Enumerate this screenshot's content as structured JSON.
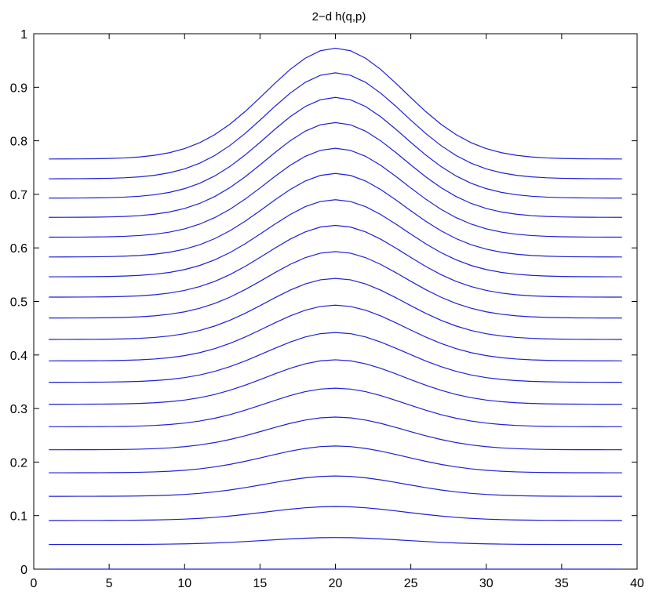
{
  "chart_data": {
    "type": "line",
    "title": "2−d h(q,p)",
    "xlabel": "",
    "ylabel": "",
    "xlim": [
      0,
      40
    ],
    "ylim": [
      0,
      1
    ],
    "xticks": [
      0,
      5,
      10,
      15,
      20,
      25,
      30,
      35,
      40
    ],
    "yticks": [
      0,
      0.1,
      0.2,
      0.3,
      0.4,
      0.5,
      0.6,
      0.7,
      0.8,
      0.9,
      1
    ],
    "ytick_labels": [
      "0",
      "0.1",
      "0.2",
      "0.3",
      "0.4",
      "0.5",
      "0.6",
      "0.7",
      "0.8",
      "0.9",
      "1"
    ],
    "grid": false,
    "line_color": "#1f1fd6",
    "x": [
      1,
      2,
      3,
      4,
      5,
      6,
      7,
      8,
      9,
      10,
      11,
      12,
      13,
      14,
      15,
      16,
      17,
      18,
      19,
      20,
      21,
      22,
      23,
      24,
      25,
      26,
      27,
      28,
      29,
      30,
      31,
      32,
      33,
      34,
      35,
      36,
      37,
      38,
      39
    ],
    "series_params": [
      {
        "base": 0.0,
        "peak": 0.0
      },
      {
        "base": 0.046,
        "peak": 0.059
      },
      {
        "base": 0.091,
        "peak": 0.117
      },
      {
        "base": 0.136,
        "peak": 0.174
      },
      {
        "base": 0.18,
        "peak": 0.23
      },
      {
        "base": 0.223,
        "peak": 0.284
      },
      {
        "base": 0.266,
        "peak": 0.338
      },
      {
        "base": 0.308,
        "peak": 0.391
      },
      {
        "base": 0.349,
        "peak": 0.442
      },
      {
        "base": 0.389,
        "peak": 0.493
      },
      {
        "base": 0.429,
        "peak": 0.543
      },
      {
        "base": 0.469,
        "peak": 0.593
      },
      {
        "base": 0.508,
        "peak": 0.642
      },
      {
        "base": 0.546,
        "peak": 0.69
      },
      {
        "base": 0.583,
        "peak": 0.739
      },
      {
        "base": 0.62,
        "peak": 0.786
      },
      {
        "base": 0.657,
        "peak": 0.834
      },
      {
        "base": 0.693,
        "peak": 0.881
      },
      {
        "base": 0.729,
        "peak": 0.927
      },
      {
        "base": 0.766,
        "peak": 0.973
      }
    ],
    "peak_x": 20,
    "shape_width": 6.5
  }
}
